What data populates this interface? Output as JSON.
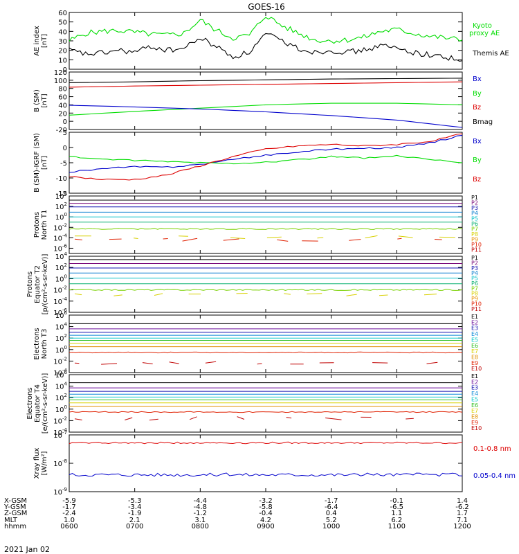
{
  "title": "GOES-16",
  "date_label": "2021 Jan 02",
  "colors": {
    "black": "#000000",
    "red": "#dd0000",
    "green": "#00dd00",
    "blue": "#0000cc"
  },
  "channel_colors": {
    "P1": "#000000",
    "P2": "#7a0a7a",
    "P3": "#1010b0",
    "P4": "#0a7fd0",
    "P5": "#08c0c8",
    "P6": "#08b070",
    "P7": "#78d000",
    "P8": "#d8d000",
    "P9": "#e89000",
    "P10": "#e02000",
    "P11": "#c00000",
    "E1": "#000000",
    "E2": "#6a0a9a",
    "E3": "#1010b0",
    "E4": "#0a8ad8",
    "E5": "#08c8c8",
    "E6": "#30c020",
    "E7": "#d8d000",
    "E8": "#e09000",
    "E9": "#e02000",
    "E10": "#c00000"
  },
  "ephemeris": {
    "row_labels": [
      "X-GSM",
      "Y-GSM",
      "Z-GSM",
      "MLT",
      "hhmm"
    ],
    "columns": [
      {
        "x": "-5.9",
        "y": "-1.7",
        "z": "-2.4",
        "mlt": "1.0",
        "hhmm": "0600"
      },
      {
        "x": "-5.3",
        "y": "-3.4",
        "z": "-1.9",
        "mlt": "2.1",
        "hhmm": "0700"
      },
      {
        "x": "-4.4",
        "y": "-4.8",
        "z": "-1.2",
        "mlt": "3.1",
        "hhmm": "0800"
      },
      {
        "x": "-3.2",
        "y": "-5.8",
        "z": "-0.4",
        "mlt": "4.2",
        "hhmm": "0900"
      },
      {
        "x": "-1.7",
        "y": "-6.4",
        "z": "0.4",
        "mlt": "5.2",
        "hhmm": "1000"
      },
      {
        "x": "-0.1",
        "y": "-6.5",
        "z": "1.1",
        "mlt": "6.2",
        "hhmm": "1100"
      },
      {
        "x": "1.4",
        "y": "-6.2",
        "z": "1.7",
        "mlt": "7.1",
        "hhmm": "1200"
      }
    ]
  },
  "chart_data": [
    {
      "type": "line",
      "id": "ae",
      "ylabel": [
        "AE index",
        "[nT]"
      ],
      "ylim": [
        0,
        60
      ],
      "yticks": [
        0,
        10,
        20,
        30,
        40,
        50,
        60
      ],
      "legend": [
        {
          "text": "Kyoto",
          "color": "#00dd00"
        },
        {
          "text": "proxy AE",
          "color": "#00dd00"
        },
        {
          "text": "Themis AE",
          "color": "#000000"
        }
      ],
      "series": [
        {
          "name": "Kyoto proxy AE",
          "color": "#00dd00",
          "x": [
            6.0,
            6.25,
            6.5,
            6.75,
            7.0,
            7.25,
            7.5,
            7.75,
            8.0,
            8.25,
            8.5,
            8.75,
            9.0,
            9.25,
            9.5,
            9.75,
            10.0,
            10.25,
            10.5,
            10.75,
            11.0,
            11.25,
            11.5,
            11.75,
            12.0
          ],
          "y": [
            30,
            38,
            40,
            41,
            39,
            37,
            36,
            38,
            52,
            41,
            33,
            36,
            57,
            46,
            38,
            31,
            30,
            31,
            34,
            40,
            42,
            38,
            35,
            33,
            31
          ]
        },
        {
          "name": "Themis AE",
          "color": "#000000",
          "x": [
            6.0,
            6.25,
            6.5,
            6.75,
            7.0,
            7.25,
            7.5,
            7.75,
            8.0,
            8.25,
            8.5,
            8.75,
            9.0,
            9.25,
            9.5,
            9.75,
            10.0,
            10.25,
            10.5,
            10.75,
            11.0,
            11.25,
            11.5,
            11.75,
            12.0
          ],
          "y": [
            20,
            16,
            17,
            20,
            18,
            24,
            20,
            22,
            33,
            24,
            13,
            18,
            37,
            30,
            22,
            18,
            20,
            18,
            20,
            25,
            22,
            18,
            15,
            13,
            9
          ]
        }
      ]
    },
    {
      "type": "line",
      "id": "b-sm",
      "ylabel": [
        "B (SM)",
        "[nT]"
      ],
      "ylim": [
        -20,
        120
      ],
      "yticks": [
        -20,
        0,
        20,
        40,
        60,
        80,
        100,
        120
      ],
      "legend": [
        {
          "text": "Bx",
          "color": "#0000cc"
        },
        {
          "text": "By",
          "color": "#00dd00"
        },
        {
          "text": "Bz",
          "color": "#dd0000"
        },
        {
          "text": "Bmag",
          "color": "#000000"
        }
      ],
      "series": [
        {
          "name": "Bmag",
          "color": "#000000",
          "x": [
            6,
            7,
            8,
            9,
            10,
            11,
            12
          ],
          "y": [
            94,
            96,
            99,
            101,
            103,
            104,
            105
          ]
        },
        {
          "name": "Bz",
          "color": "#dd0000",
          "x": [
            6,
            7,
            8,
            9,
            10,
            11,
            12
          ],
          "y": [
            83,
            86,
            88,
            90,
            92,
            94,
            96
          ]
        },
        {
          "name": "By",
          "color": "#00dd00",
          "x": [
            6,
            7,
            8,
            9,
            10,
            11,
            12
          ],
          "y": [
            15,
            24,
            32,
            40,
            44,
            44,
            40
          ]
        },
        {
          "name": "Bx",
          "color": "#0000cc",
          "x": [
            6,
            7,
            8,
            9,
            10,
            11,
            12
          ],
          "y": [
            39,
            35,
            30,
            23,
            14,
            3,
            -15
          ]
        }
      ]
    },
    {
      "type": "line",
      "id": "b-igrf",
      "ylabel": [
        "B (SM)-IGRF (SM)",
        "[nT]"
      ],
      "ylim": [
        -15,
        5
      ],
      "yticks": [
        -15,
        -10,
        -5,
        0,
        5
      ],
      "legend": [
        {
          "text": "Bx",
          "color": "#0000cc"
        },
        {
          "text": "By",
          "color": "#00dd00"
        },
        {
          "text": "Bz",
          "color": "#dd0000"
        }
      ],
      "series": [
        {
          "name": "Bx",
          "color": "#0000cc",
          "x": [
            6,
            6.5,
            7,
            7.5,
            8,
            8.5,
            9,
            9.5,
            10,
            10.5,
            11,
            11.5,
            12
          ],
          "y": [
            -8,
            -7,
            -6.3,
            -6.5,
            -5.5,
            -4,
            -2.5,
            -1.5,
            -0.5,
            -0.3,
            0,
            1.5,
            4
          ]
        },
        {
          "name": "By",
          "color": "#00dd00",
          "x": [
            6,
            6.5,
            7,
            7.5,
            8,
            8.5,
            9,
            9.5,
            10,
            10.5,
            11,
            11.5,
            12
          ],
          "y": [
            -3,
            -3.8,
            -4.3,
            -4.6,
            -5,
            -5.2,
            -4.8,
            -4,
            -3,
            -3.5,
            -2.8,
            -4,
            -5
          ]
        },
        {
          "name": "Bz",
          "color": "#dd0000",
          "x": [
            6,
            6.5,
            7,
            7.5,
            8,
            8.5,
            9,
            9.5,
            10,
            10.5,
            11,
            11.5,
            12
          ],
          "y": [
            -9.5,
            -10.5,
            -10.5,
            -9,
            -6,
            -3,
            -0.5,
            0.5,
            1,
            0.5,
            1,
            2,
            4.5
          ]
        }
      ]
    },
    {
      "type": "line",
      "id": "protons-t1",
      "ylabel": [
        "Protons",
        "North T1"
      ],
      "log": true,
      "ylim_exp": [
        -7,
        4
      ],
      "tick_exps": [
        -6,
        -4,
        -2,
        0,
        2,
        4
      ],
      "legend": [
        {
          "text": "P1",
          "channel": "P1"
        },
        {
          "text": "P2",
          "channel": "P2"
        },
        {
          "text": "P3",
          "channel": "P3"
        },
        {
          "text": "P4",
          "channel": "P4"
        },
        {
          "text": "P5",
          "channel": "P5"
        },
        {
          "text": "P6",
          "channel": "P6"
        },
        {
          "text": "P7",
          "channel": "P7"
        },
        {
          "text": "P8",
          "channel": "P8"
        },
        {
          "text": "P9",
          "channel": "P9"
        },
        {
          "text": "P10",
          "channel": "P10"
        },
        {
          "text": "P11",
          "channel": "P11"
        }
      ],
      "series": [
        {
          "name": "P1",
          "channel": "P1",
          "y_exp": 3.2,
          "noise": 0
        },
        {
          "name": "P2",
          "channel": "P2",
          "y_exp": 2.6,
          "noise": 0
        },
        {
          "name": "P3",
          "channel": "P3",
          "y_exp": 1.9,
          "noise": 0
        },
        {
          "name": "P4",
          "channel": "P4",
          "y_exp": 0.9,
          "noise": 0
        },
        {
          "name": "P5",
          "channel": "P5",
          "y_exp": 0.0,
          "noise": 0
        },
        {
          "name": "P6",
          "channel": "P6",
          "y_exp": -1.0,
          "noise": 0
        },
        {
          "name": "P7",
          "channel": "P7",
          "y_exp": -2.3,
          "noise": 0.12
        },
        {
          "name": "P8",
          "channel": "P8",
          "y_exp": -3.9,
          "sparse": true
        },
        {
          "name": "P10",
          "channel": "P10",
          "y_exp": -4.4,
          "sparse": true
        }
      ]
    },
    {
      "type": "line",
      "id": "protons-t2",
      "ylabel": [
        "Protons",
        "Equator T2",
        "[p/(cm²-s-sr-keV)]"
      ],
      "log": true,
      "ylim_exp": [
        -6,
        4
      ],
      "tick_exps": [
        -6,
        -4,
        -2,
        0,
        2,
        4
      ],
      "legend": [
        {
          "text": "P1",
          "channel": "P1"
        },
        {
          "text": "P2",
          "channel": "P2"
        },
        {
          "text": "P3",
          "channel": "P3"
        },
        {
          "text": "P4",
          "channel": "P4"
        },
        {
          "text": "P5",
          "channel": "P5"
        },
        {
          "text": "P6",
          "channel": "P6"
        },
        {
          "text": "P7",
          "channel": "P7"
        },
        {
          "text": "P8",
          "channel": "P8"
        },
        {
          "text": "P9",
          "channel": "P9"
        },
        {
          "text": "P10",
          "channel": "P10"
        },
        {
          "text": "P11",
          "channel": "P11"
        }
      ],
      "series": [
        {
          "name": "P1",
          "channel": "P1",
          "y_exp": 3.4,
          "noise": 0
        },
        {
          "name": "P2",
          "channel": "P2",
          "y_exp": 2.7,
          "noise": 0
        },
        {
          "name": "P3",
          "channel": "P3",
          "y_exp": 1.9,
          "noise": 0
        },
        {
          "name": "P4",
          "channel": "P4",
          "y_exp": 1.0,
          "noise": 0
        },
        {
          "name": "P5",
          "channel": "P5",
          "y_exp": 0.1,
          "noise": 0
        },
        {
          "name": "P6",
          "channel": "P6",
          "y_exp": -0.9,
          "noise": 0
        },
        {
          "name": "P7",
          "channel": "P7",
          "y_exp": -2.0,
          "noise": 0.1
        },
        {
          "name": "P8",
          "channel": "P8",
          "y_exp": -2.9,
          "sparse": true
        }
      ]
    },
    {
      "type": "line",
      "id": "electrons-t3",
      "ylabel": [
        "Electrons",
        "North T3"
      ],
      "log": true,
      "ylim_exp": [
        -4,
        6
      ],
      "tick_exps": [
        -4,
        -2,
        0,
        2,
        4,
        6
      ],
      "legend": [
        {
          "text": "E1",
          "channel": "E1"
        },
        {
          "text": "E2",
          "channel": "E2"
        },
        {
          "text": "E3",
          "channel": "E3"
        },
        {
          "text": "E4",
          "channel": "E4"
        },
        {
          "text": "E5",
          "channel": "E5"
        },
        {
          "text": "E6",
          "channel": "E6"
        },
        {
          "text": "E7",
          "channel": "E7"
        },
        {
          "text": "E8",
          "channel": "E8"
        },
        {
          "text": "E9",
          "channel": "E9"
        },
        {
          "text": "E10",
          "channel": "E10"
        }
      ],
      "series": [
        {
          "name": "E1",
          "channel": "E1",
          "y_exp": 4.5,
          "noise": 0
        },
        {
          "name": "E2",
          "channel": "E2",
          "y_exp": 3.6,
          "noise": 0
        },
        {
          "name": "E3",
          "channel": "E3",
          "y_exp": 3.0,
          "noise": 0
        },
        {
          "name": "E4",
          "channel": "E4",
          "y_exp": 2.5,
          "noise": 0
        },
        {
          "name": "E5",
          "channel": "E5",
          "y_exp": 2.0,
          "noise": 0
        },
        {
          "name": "E6",
          "channel": "E6",
          "y_exp": 1.6,
          "noise": 0
        },
        {
          "name": "E7",
          "channel": "E7",
          "y_exp": 1.1,
          "noise": 0
        },
        {
          "name": "E8",
          "channel": "E8",
          "y_exp": 0.5,
          "noise": 0
        },
        {
          "name": "E9",
          "channel": "E9",
          "y_exp": -0.5,
          "noise": 0.08
        },
        {
          "name": "E10",
          "channel": "E10",
          "y_exp": -2.3,
          "sparse": true
        }
      ]
    },
    {
      "type": "line",
      "id": "electrons-t4",
      "ylabel": [
        "Electrons",
        "Equator T4",
        "[e/(cm²-s-sr-keV)]"
      ],
      "log": true,
      "ylim_exp": [
        -4,
        6
      ],
      "tick_exps": [
        -4,
        -2,
        0,
        2,
        4,
        6
      ],
      "legend": [
        {
          "text": "E1",
          "channel": "E1"
        },
        {
          "text": "E2",
          "channel": "E2"
        },
        {
          "text": "E3",
          "channel": "E3"
        },
        {
          "text": "E4",
          "channel": "E4"
        },
        {
          "text": "E5",
          "channel": "E5"
        },
        {
          "text": "E6",
          "channel": "E6"
        },
        {
          "text": "E7",
          "channel": "E7"
        },
        {
          "text": "E8",
          "channel": "E8"
        },
        {
          "text": "E9",
          "channel": "E9"
        },
        {
          "text": "E10",
          "channel": "E10"
        }
      ],
      "series": [
        {
          "name": "E1",
          "channel": "E1",
          "y_exp": 4.6,
          "noise": 0
        },
        {
          "name": "E2",
          "channel": "E2",
          "y_exp": 3.7,
          "noise": 0
        },
        {
          "name": "E3",
          "channel": "E3",
          "y_exp": 3.1,
          "noise": 0
        },
        {
          "name": "E4",
          "channel": "E4",
          "y_exp": 2.6,
          "noise": 0
        },
        {
          "name": "E5",
          "channel": "E5",
          "y_exp": 2.1,
          "noise": 0
        },
        {
          "name": "E6",
          "channel": "E6",
          "y_exp": 1.6,
          "noise": 0
        },
        {
          "name": "E7",
          "channel": "E7",
          "y_exp": 1.1,
          "noise": 0
        },
        {
          "name": "E8",
          "channel": "E8",
          "y_exp": 0.5,
          "noise": 0
        },
        {
          "name": "E9",
          "channel": "E9",
          "y_exp": -0.5,
          "noise": 0.08
        },
        {
          "name": "E10",
          "channel": "E10",
          "y_exp": -1.6,
          "sparse": true
        }
      ]
    },
    {
      "type": "line",
      "id": "xray",
      "ylabel": [
        "Xray flux",
        "[W/m²]"
      ],
      "log": true,
      "ylim_exp": [
        -9,
        -7
      ],
      "tick_exps": [
        -9,
        -8,
        -7
      ],
      "legend": [
        {
          "text": "0.1-0.8 nm",
          "color": "#dd0000"
        },
        {
          "text": "0.05-0.4 nm",
          "color": "#0000cc"
        }
      ],
      "series": [
        {
          "name": "0.1-0.8 nm",
          "color": "#dd0000",
          "y_exp": -7.28,
          "noise": 0.03
        },
        {
          "name": "0.05-0.4 nm",
          "color": "#0000cc",
          "y_exp": -8.4,
          "noise": 0.06
        }
      ]
    }
  ]
}
